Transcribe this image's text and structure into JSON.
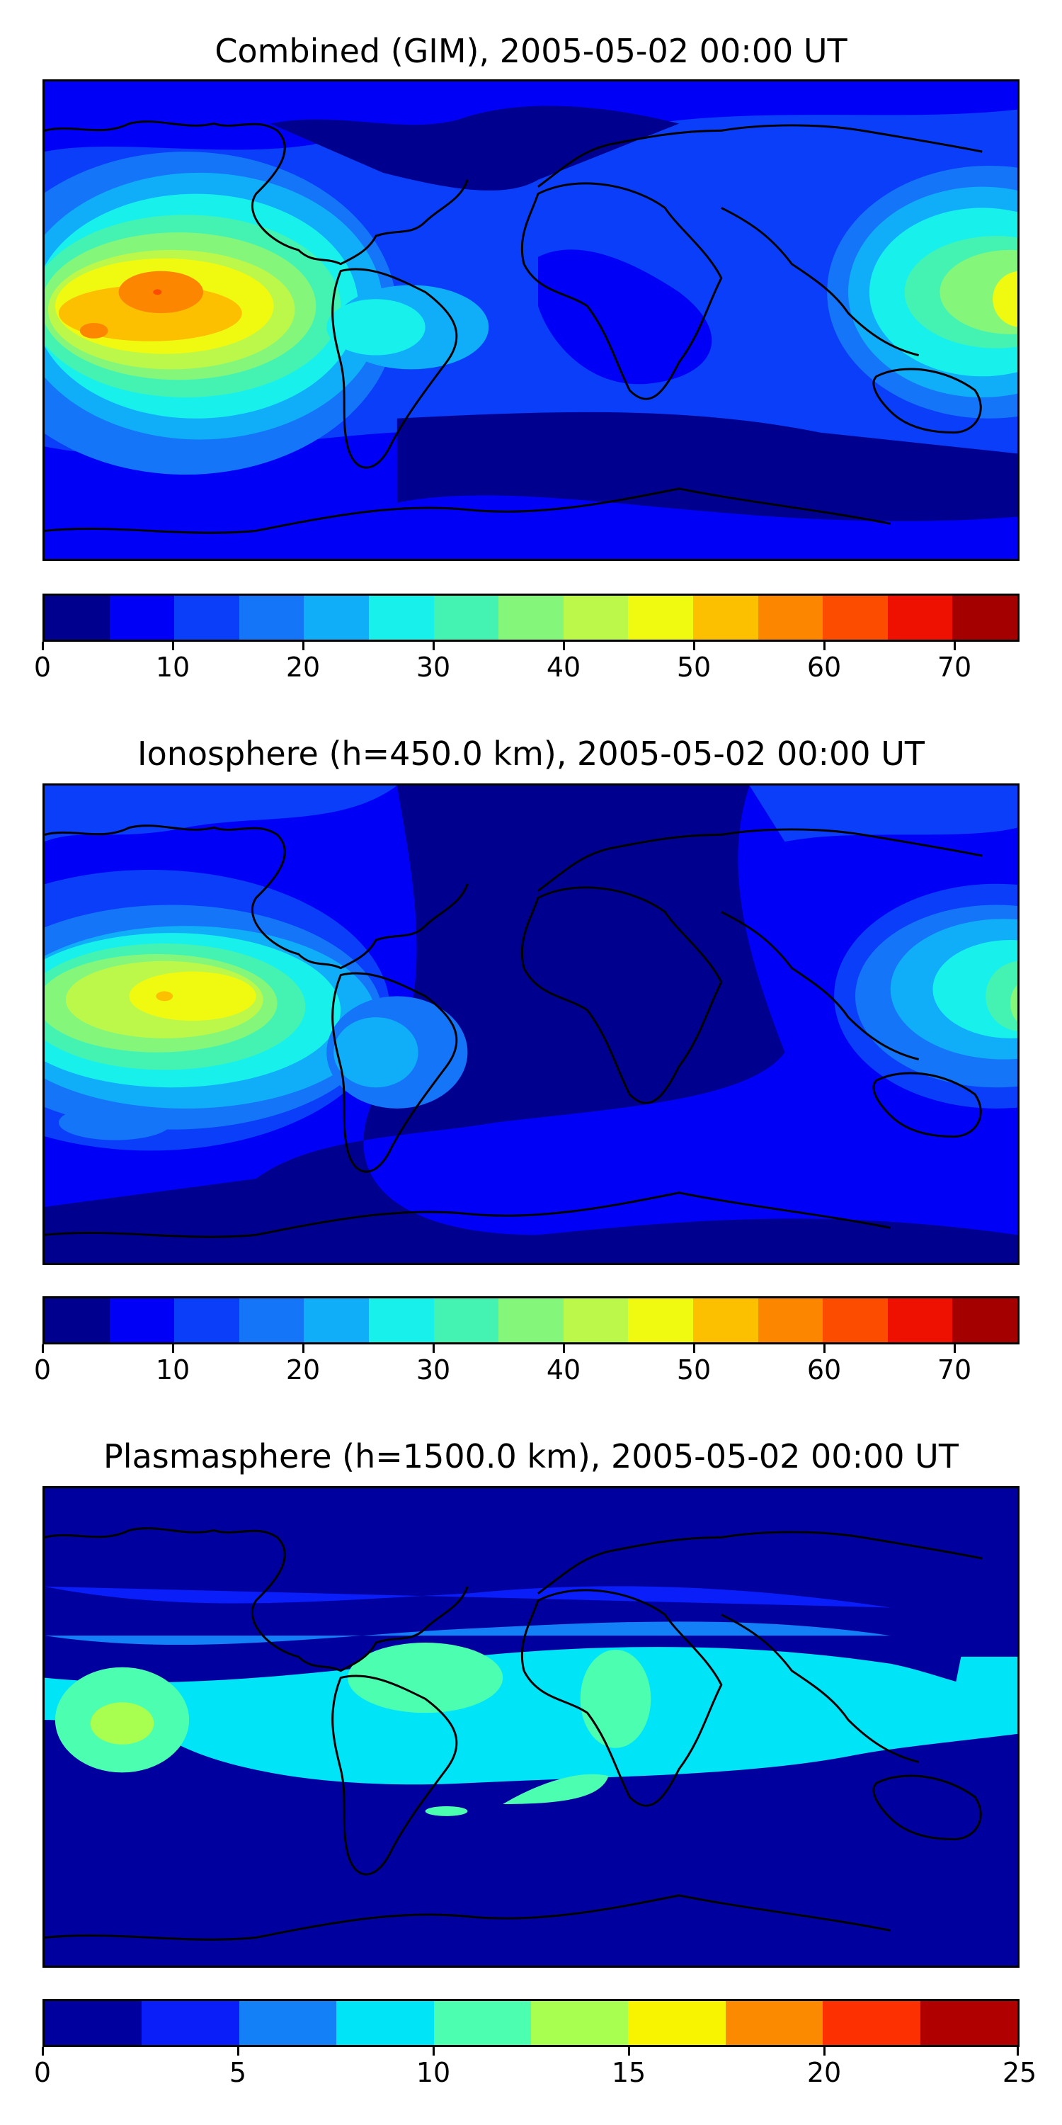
{
  "panels": [
    {
      "title": "Combined (GIM), 2005-05-02 00:00 UT",
      "colorbar": {
        "min": 0,
        "max": 75,
        "colors": [
          "#00008f",
          "#0000f6",
          "#0a3ef8",
          "#1475f8",
          "#10aef9",
          "#18f0ec",
          "#44f3b2",
          "#84f77b",
          "#bcf84a",
          "#f0fa10",
          "#fcc000",
          "#fc8600",
          "#fc4c00",
          "#ee1000",
          "#a40000"
        ],
        "ticks": [
          "0",
          "10",
          "20",
          "30",
          "40",
          "50",
          "60",
          "70"
        ],
        "tick_values": [
          0,
          10,
          20,
          30,
          40,
          50,
          60,
          70
        ]
      }
    },
    {
      "title": "Ionosphere  (h=450.0 km), 2005-05-02 00:00 UT",
      "colorbar": {
        "min": 0,
        "max": 75,
        "colors": [
          "#00008f",
          "#0000f6",
          "#0a3ef8",
          "#1475f8",
          "#10aef9",
          "#18f0ec",
          "#44f3b2",
          "#84f77b",
          "#bcf84a",
          "#f0fa10",
          "#fcc000",
          "#fc8600",
          "#fc4c00",
          "#ee1000",
          "#a40000"
        ],
        "ticks": [
          "0",
          "10",
          "20",
          "30",
          "40",
          "50",
          "60",
          "70"
        ],
        "tick_values": [
          0,
          10,
          20,
          30,
          40,
          50,
          60,
          70
        ]
      }
    },
    {
      "title": "Plasmasphere (h=1500.0 km), 2005-05-02 00:00 UT",
      "colorbar": {
        "min": 0,
        "max": 25,
        "colors": [
          "#00009e",
          "#0a1efa",
          "#1480f8",
          "#00e4f8",
          "#4cffb0",
          "#a8ff50",
          "#f8f400",
          "#fc8a00",
          "#fc3000",
          "#b00000"
        ],
        "ticks": [
          "0",
          "5",
          "10",
          "15",
          "20",
          "25"
        ],
        "tick_values": [
          0,
          5,
          10,
          15,
          20,
          25
        ]
      }
    }
  ]
}
